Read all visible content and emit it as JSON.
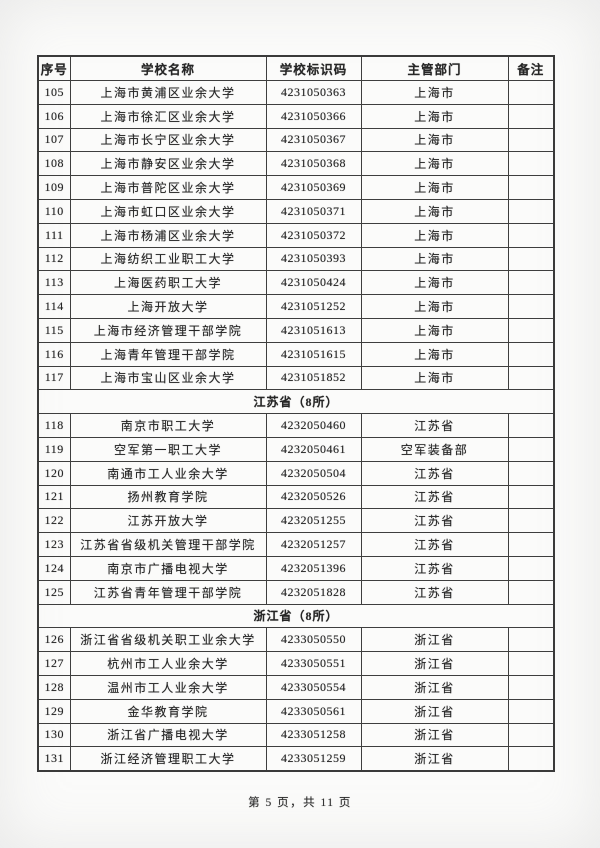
{
  "footer": {
    "text": "第 5 页，共 11 页"
  },
  "table": {
    "columns": [
      "序号",
      "学校名称",
      "学校标识码",
      "主管部门",
      "备注"
    ],
    "sections": [
      {
        "label": "",
        "rows": [
          {
            "no": "105",
            "name": "上海市黄浦区业余大学",
            "code": "4231050363",
            "dept": "上海市",
            "note": ""
          },
          {
            "no": "106",
            "name": "上海市徐汇区业余大学",
            "code": "4231050366",
            "dept": "上海市",
            "note": ""
          },
          {
            "no": "107",
            "name": "上海市长宁区业余大学",
            "code": "4231050367",
            "dept": "上海市",
            "note": ""
          },
          {
            "no": "108",
            "name": "上海市静安区业余大学",
            "code": "4231050368",
            "dept": "上海市",
            "note": ""
          },
          {
            "no": "109",
            "name": "上海市普陀区业余大学",
            "code": "4231050369",
            "dept": "上海市",
            "note": ""
          },
          {
            "no": "110",
            "name": "上海市虹口区业余大学",
            "code": "4231050371",
            "dept": "上海市",
            "note": ""
          },
          {
            "no": "111",
            "name": "上海市杨浦区业余大学",
            "code": "4231050372",
            "dept": "上海市",
            "note": ""
          },
          {
            "no": "112",
            "name": "上海纺织工业职工大学",
            "code": "4231050393",
            "dept": "上海市",
            "note": ""
          },
          {
            "no": "113",
            "name": "上海医药职工大学",
            "code": "4231050424",
            "dept": "上海市",
            "note": ""
          },
          {
            "no": "114",
            "name": "上海开放大学",
            "code": "4231051252",
            "dept": "上海市",
            "note": ""
          },
          {
            "no": "115",
            "name": "上海市经济管理干部学院",
            "code": "4231051613",
            "dept": "上海市",
            "note": ""
          },
          {
            "no": "116",
            "name": "上海青年管理干部学院",
            "code": "4231051615",
            "dept": "上海市",
            "note": ""
          },
          {
            "no": "117",
            "name": "上海市宝山区业余大学",
            "code": "4231051852",
            "dept": "上海市",
            "note": ""
          }
        ]
      },
      {
        "label": "江苏省（8所）",
        "rows": [
          {
            "no": "118",
            "name": "南京市职工大学",
            "code": "4232050460",
            "dept": "江苏省",
            "note": ""
          },
          {
            "no": "119",
            "name": "空军第一职工大学",
            "code": "4232050461",
            "dept": "空军装备部",
            "note": ""
          },
          {
            "no": "120",
            "name": "南通市工人业余大学",
            "code": "4232050504",
            "dept": "江苏省",
            "note": ""
          },
          {
            "no": "121",
            "name": "扬州教育学院",
            "code": "4232050526",
            "dept": "江苏省",
            "note": ""
          },
          {
            "no": "122",
            "name": "江苏开放大学",
            "code": "4232051255",
            "dept": "江苏省",
            "note": ""
          },
          {
            "no": "123",
            "name": "江苏省省级机关管理干部学院",
            "code": "4232051257",
            "dept": "江苏省",
            "note": ""
          },
          {
            "no": "124",
            "name": "南京市广播电视大学",
            "code": "4232051396",
            "dept": "江苏省",
            "note": ""
          },
          {
            "no": "125",
            "name": "江苏省青年管理干部学院",
            "code": "4232051828",
            "dept": "江苏省",
            "note": ""
          }
        ]
      },
      {
        "label": "浙江省（8所）",
        "rows": [
          {
            "no": "126",
            "name": "浙江省省级机关职工业余大学",
            "code": "4233050550",
            "dept": "浙江省",
            "note": ""
          },
          {
            "no": "127",
            "name": "杭州市工人业余大学",
            "code": "4233050551",
            "dept": "浙江省",
            "note": ""
          },
          {
            "no": "128",
            "name": "温州市工人业余大学",
            "code": "4233050554",
            "dept": "浙江省",
            "note": ""
          },
          {
            "no": "129",
            "name": "金华教育学院",
            "code": "4233050561",
            "dept": "浙江省",
            "note": ""
          },
          {
            "no": "130",
            "name": "浙江省广播电视大学",
            "code": "4233051258",
            "dept": "浙江省",
            "note": ""
          },
          {
            "no": "131",
            "name": "浙江经济管理职工大学",
            "code": "4233051259",
            "dept": "浙江省",
            "note": ""
          }
        ]
      }
    ]
  }
}
